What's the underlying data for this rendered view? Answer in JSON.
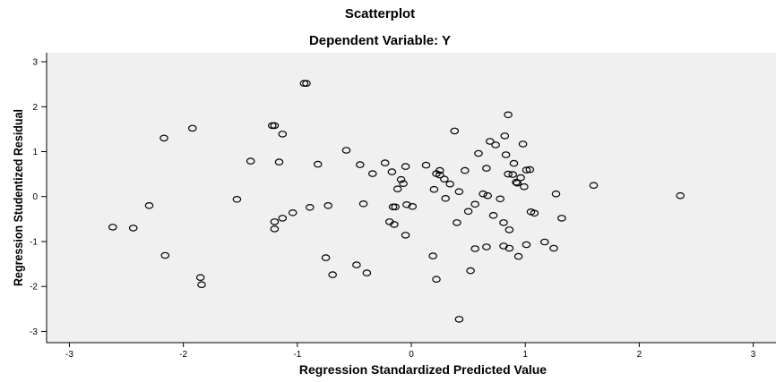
{
  "chart_data": {
    "type": "scatter",
    "title": "Scatterplot",
    "subtitle": "Dependent Variable: Y",
    "xlabel": "Regression Standardized Predicted Value",
    "ylabel": "Regression Studentized Residual",
    "xlim": [
      -3.2,
      3.2
    ],
    "ylim": [
      -3.25,
      3.2
    ],
    "xticks": [
      "-3",
      "-2",
      "-1",
      "0",
      "1",
      "2",
      "3"
    ],
    "yticks": [
      "3",
      "2",
      "1",
      "0",
      "-1",
      "-2",
      "-3"
    ],
    "xtick_values": [
      -3,
      -2,
      -1,
      0,
      1,
      2,
      3
    ],
    "ytick_values": [
      3,
      2,
      1,
      0,
      -1,
      -2,
      -3
    ],
    "grid": false,
    "colors": {
      "plot_background": "#f0f0f0",
      "marker_edge": "#000000",
      "axis": "#000000"
    },
    "points": [
      {
        "x": -2.62,
        "y": -0.68
      },
      {
        "x": -2.44,
        "y": -0.7
      },
      {
        "x": -2.3,
        "y": -0.2
      },
      {
        "x": -2.17,
        "y": 1.3
      },
      {
        "x": -2.16,
        "y": -1.31
      },
      {
        "x": -1.92,
        "y": 1.52
      },
      {
        "x": -1.85,
        "y": -1.8
      },
      {
        "x": -1.84,
        "y": -1.96
      },
      {
        "x": -1.53,
        "y": -0.06
      },
      {
        "x": -1.41,
        "y": 0.79
      },
      {
        "x": -1.22,
        "y": 1.58
      },
      {
        "x": -1.2,
        "y": 1.58
      },
      {
        "x": -1.2,
        "y": -0.56
      },
      {
        "x": -1.2,
        "y": -0.72
      },
      {
        "x": -1.16,
        "y": 0.77
      },
      {
        "x": -1.13,
        "y": 1.39
      },
      {
        "x": -1.13,
        "y": -0.48
      },
      {
        "x": -1.04,
        "y": -0.36
      },
      {
        "x": -0.94,
        "y": 2.52
      },
      {
        "x": -0.92,
        "y": 2.52
      },
      {
        "x": -0.89,
        "y": -0.24
      },
      {
        "x": -0.82,
        "y": 0.72
      },
      {
        "x": -0.75,
        "y": -1.36
      },
      {
        "x": -0.73,
        "y": -0.2
      },
      {
        "x": -0.69,
        "y": -1.74
      },
      {
        "x": -0.57,
        "y": 1.03
      },
      {
        "x": -0.48,
        "y": -1.52
      },
      {
        "x": -0.45,
        "y": 0.71
      },
      {
        "x": -0.42,
        "y": -0.16
      },
      {
        "x": -0.39,
        "y": -1.7
      },
      {
        "x": -0.34,
        "y": 0.51
      },
      {
        "x": -0.23,
        "y": 0.75
      },
      {
        "x": -0.19,
        "y": -0.56
      },
      {
        "x": -0.17,
        "y": 0.55
      },
      {
        "x": -0.16,
        "y": -0.23
      },
      {
        "x": -0.15,
        "y": -0.62
      },
      {
        "x": -0.14,
        "y": -0.23
      },
      {
        "x": -0.12,
        "y": 0.17
      },
      {
        "x": -0.09,
        "y": 0.38
      },
      {
        "x": -0.07,
        "y": 0.29
      },
      {
        "x": -0.05,
        "y": 0.67
      },
      {
        "x": -0.05,
        "y": -0.86
      },
      {
        "x": -0.04,
        "y": -0.18
      },
      {
        "x": 0.01,
        "y": -0.22
      },
      {
        "x": 0.13,
        "y": 0.7
      },
      {
        "x": 0.19,
        "y": -1.32
      },
      {
        "x": 0.2,
        "y": 0.16
      },
      {
        "x": 0.22,
        "y": 0.51
      },
      {
        "x": 0.22,
        "y": -1.84
      },
      {
        "x": 0.25,
        "y": 0.58
      },
      {
        "x": 0.25,
        "y": 0.48
      },
      {
        "x": 0.29,
        "y": 0.39
      },
      {
        "x": 0.3,
        "y": -0.04
      },
      {
        "x": 0.34,
        "y": 0.28
      },
      {
        "x": 0.38,
        "y": 1.46
      },
      {
        "x": 0.4,
        "y": -0.58
      },
      {
        "x": 0.42,
        "y": 0.11
      },
      {
        "x": 0.42,
        "y": -2.73
      },
      {
        "x": 0.47,
        "y": 0.58
      },
      {
        "x": 0.5,
        "y": -0.33
      },
      {
        "x": 0.52,
        "y": -1.65
      },
      {
        "x": 0.56,
        "y": -0.17
      },
      {
        "x": 0.56,
        "y": -1.16
      },
      {
        "x": 0.59,
        "y": 0.96
      },
      {
        "x": 0.63,
        "y": 0.06
      },
      {
        "x": 0.66,
        "y": -1.12
      },
      {
        "x": 0.66,
        "y": 0.63
      },
      {
        "x": 0.67,
        "y": 0.02
      },
      {
        "x": 0.69,
        "y": 1.23
      },
      {
        "x": 0.72,
        "y": -0.42
      },
      {
        "x": 0.74,
        "y": 1.15
      },
      {
        "x": 0.78,
        "y": -0.05
      },
      {
        "x": 0.81,
        "y": -0.58
      },
      {
        "x": 0.81,
        "y": -1.1
      },
      {
        "x": 0.82,
        "y": 1.35
      },
      {
        "x": 0.83,
        "y": 0.93
      },
      {
        "x": 0.85,
        "y": 1.82
      },
      {
        "x": 0.85,
        "y": 0.5
      },
      {
        "x": 0.86,
        "y": -0.74
      },
      {
        "x": 0.86,
        "y": -1.15
      },
      {
        "x": 0.89,
        "y": 0.49
      },
      {
        "x": 0.9,
        "y": 0.74
      },
      {
        "x": 0.92,
        "y": 0.32
      },
      {
        "x": 0.93,
        "y": 0.3
      },
      {
        "x": 0.94,
        "y": -1.33
      },
      {
        "x": 0.96,
        "y": 0.42
      },
      {
        "x": 0.98,
        "y": 1.17
      },
      {
        "x": 0.99,
        "y": 0.22
      },
      {
        "x": 1.01,
        "y": 0.59
      },
      {
        "x": 1.01,
        "y": -1.07
      },
      {
        "x": 1.04,
        "y": 0.6
      },
      {
        "x": 1.05,
        "y": -0.34
      },
      {
        "x": 1.08,
        "y": -0.37
      },
      {
        "x": 1.17,
        "y": -1.01
      },
      {
        "x": 1.25,
        "y": -1.15
      },
      {
        "x": 1.27,
        "y": 0.06
      },
      {
        "x": 1.32,
        "y": -0.48
      },
      {
        "x": 1.6,
        "y": 0.25
      },
      {
        "x": 2.36,
        "y": 0.02
      }
    ]
  }
}
